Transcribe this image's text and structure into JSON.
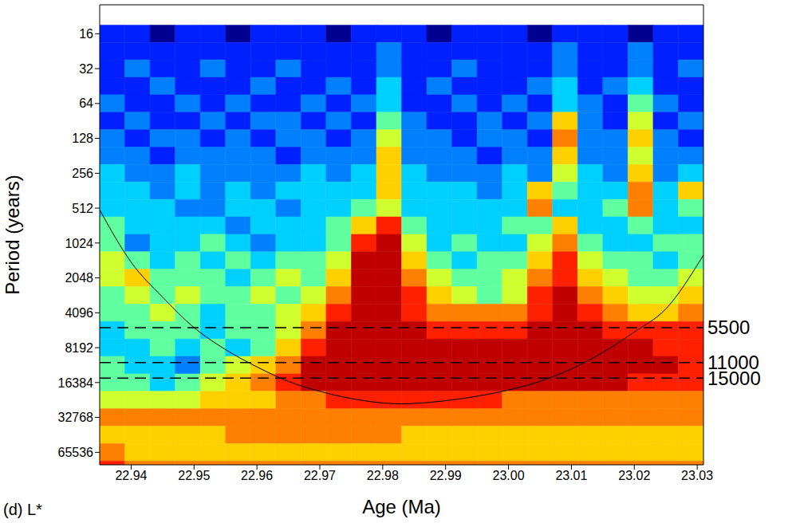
{
  "chart_data": {
    "type": "heatmap",
    "title": "(d) L*",
    "x_label": "Age (Ma)",
    "y_label": "Period (years)",
    "log": "y",
    "xlim": [
      22.935,
      23.031
    ],
    "xticks": [
      22.94,
      22.95,
      22.96,
      22.97,
      22.98,
      22.99,
      23.0,
      23.01,
      23.02,
      23.03
    ],
    "ylim": [
      9,
      84000
    ],
    "yticks": [
      16,
      32,
      64,
      128,
      256,
      512,
      1024,
      2048,
      4096,
      8192,
      16384,
      32768,
      65536
    ],
    "x": [
      22.937,
      22.941,
      22.945,
      22.949,
      22.953,
      22.957,
      22.961,
      22.965,
      22.969,
      22.973,
      22.977,
      22.981,
      22.985,
      22.989,
      22.993,
      22.997,
      23.001,
      23.005,
      23.009,
      23.013,
      23.017,
      23.021,
      23.025,
      23.029
    ],
    "y": [
      16,
      22.6,
      32,
      45.3,
      64,
      90.5,
      128,
      181,
      256,
      362,
      512,
      724,
      1024,
      1448,
      2048,
      2896,
      4096,
      5793,
      8192,
      11585,
      16384,
      23170,
      32768,
      46341,
      65536,
      92682
    ],
    "power": [
      [
        1,
        1,
        0,
        1,
        1,
        0,
        1,
        1,
        1,
        0,
        1,
        1,
        1,
        0,
        1,
        1,
        1,
        0,
        1,
        1,
        1,
        0,
        1,
        1
      ],
      [
        1,
        1,
        1,
        1,
        1,
        1,
        1,
        1,
        1,
        1,
        1,
        2,
        1,
        1,
        1,
        1,
        1,
        1,
        2,
        1,
        1,
        2,
        1,
        1
      ],
      [
        1,
        2,
        1,
        1,
        2,
        1,
        1,
        2,
        1,
        1,
        1,
        2,
        1,
        1,
        2,
        1,
        1,
        1,
        2,
        1,
        1,
        2,
        1,
        2
      ],
      [
        1,
        1,
        2,
        1,
        1,
        1,
        2,
        1,
        1,
        2,
        1,
        3,
        1,
        2,
        1,
        1,
        1,
        2,
        3,
        1,
        2,
        3,
        1,
        1
      ],
      [
        2,
        1,
        1,
        2,
        1,
        2,
        1,
        1,
        2,
        1,
        2,
        3,
        1,
        1,
        2,
        1,
        2,
        1,
        3,
        2,
        1,
        4,
        2,
        1
      ],
      [
        1,
        2,
        1,
        1,
        2,
        1,
        2,
        2,
        1,
        2,
        1,
        4,
        2,
        1,
        1,
        2,
        1,
        2,
        6,
        2,
        1,
        5,
        1,
        2
      ],
      [
        2,
        1,
        2,
        2,
        1,
        2,
        1,
        2,
        2,
        1,
        2,
        5,
        2,
        2,
        1,
        2,
        2,
        1,
        7,
        2,
        2,
        6,
        2,
        1
      ],
      [
        2,
        2,
        1,
        2,
        2,
        2,
        2,
        1,
        2,
        2,
        2,
        6,
        2,
        2,
        2,
        1,
        2,
        2,
        6,
        2,
        2,
        5,
        2,
        2
      ],
      [
        3,
        2,
        2,
        3,
        2,
        2,
        2,
        2,
        3,
        2,
        3,
        6,
        3,
        2,
        2,
        2,
        3,
        2,
        5,
        3,
        2,
        6,
        2,
        3
      ],
      [
        3,
        3,
        2,
        3,
        2,
        3,
        2,
        3,
        3,
        3,
        3,
        6,
        3,
        3,
        3,
        2,
        3,
        6,
        4,
        3,
        3,
        7,
        3,
        6
      ],
      [
        3,
        3,
        3,
        2,
        2,
        3,
        3,
        2,
        3,
        3,
        4,
        5,
        3,
        3,
        3,
        3,
        3,
        7,
        3,
        3,
        4,
        7,
        3,
        4
      ],
      [
        4,
        3,
        3,
        3,
        3,
        2,
        3,
        3,
        3,
        4,
        6,
        8,
        4,
        3,
        3,
        3,
        4,
        4,
        6,
        3,
        3,
        4,
        3,
        3
      ],
      [
        4,
        2,
        3,
        3,
        4,
        3,
        2,
        3,
        3,
        4,
        8,
        9,
        5,
        3,
        4,
        3,
        3,
        5,
        7,
        4,
        3,
        3,
        4,
        4
      ],
      [
        5,
        4,
        3,
        4,
        3,
        4,
        3,
        4,
        4,
        5,
        9,
        9,
        6,
        4,
        3,
        4,
        4,
        6,
        8,
        5,
        4,
        4,
        3,
        4
      ],
      [
        5,
        6,
        4,
        4,
        4,
        3,
        4,
        5,
        4,
        6,
        9,
        9,
        7,
        5,
        4,
        4,
        5,
        7,
        8,
        6,
        5,
        4,
        4,
        5
      ],
      [
        4,
        5,
        4,
        5,
        4,
        4,
        5,
        4,
        5,
        7,
        9,
        9,
        8,
        6,
        5,
        4,
        5,
        8,
        9,
        7,
        6,
        5,
        5,
        6
      ],
      [
        4,
        4,
        5,
        4,
        3,
        4,
        4,
        5,
        6,
        8,
        9,
        9,
        8,
        7,
        7,
        7,
        7,
        8,
        9,
        8,
        7,
        6,
        6,
        7
      ],
      [
        3,
        4,
        4,
        4,
        3,
        4,
        4,
        5,
        7,
        9,
        9,
        9,
        9,
        8,
        8,
        8,
        8,
        9,
        9,
        9,
        8,
        8,
        8,
        8
      ],
      [
        3,
        3,
        4,
        3,
        4,
        3,
        4,
        6,
        8,
        9,
        9,
        9,
        9,
        9,
        9,
        9,
        9,
        9,
        9,
        9,
        9,
        9,
        8,
        8
      ],
      [
        4,
        3,
        3,
        2,
        4,
        5,
        6,
        7,
        9,
        9,
        9,
        9,
        9,
        9,
        9,
        9,
        9,
        9,
        9,
        9,
        9,
        9,
        9,
        8
      ],
      [
        4,
        4,
        3,
        4,
        5,
        6,
        7,
        8,
        9,
        9,
        9,
        9,
        9,
        9,
        9,
        9,
        9,
        9,
        9,
        9,
        9,
        8,
        8,
        8
      ],
      [
        5,
        5,
        5,
        5,
        6,
        6,
        6,
        7,
        7,
        8,
        8,
        8,
        8,
        8,
        8,
        8,
        7,
        7,
        7,
        7,
        7,
        7,
        7,
        7
      ],
      [
        7,
        7,
        7,
        7,
        7,
        7,
        7,
        7,
        7,
        7,
        7,
        7,
        7,
        7,
        7,
        7,
        7,
        7,
        7,
        7,
        7,
        7,
        7,
        7
      ],
      [
        6,
        6,
        6,
        6,
        6,
        7,
        7,
        7,
        7,
        7,
        7,
        7,
        6,
        6,
        6,
        6,
        6,
        6,
        6,
        6,
        6,
        6,
        6,
        6
      ],
      [
        7,
        6,
        6,
        6,
        6,
        6,
        6,
        6,
        6,
        6,
        6,
        6,
        6,
        6,
        6,
        6,
        6,
        6,
        6,
        6,
        6,
        6,
        6,
        6
      ],
      [
        8,
        7,
        7,
        7,
        7,
        7,
        7,
        7,
        7,
        7,
        7,
        7,
        7,
        7,
        7,
        7,
        7,
        7,
        7,
        7,
        7,
        7,
        7,
        7
      ]
    ],
    "power_range": [
      0,
      9
    ],
    "cone_of_influence": {
      "x": [
        22.935,
        22.94,
        22.945,
        22.95,
        22.955,
        22.96,
        22.965,
        22.97,
        22.975,
        22.983,
        22.99,
        22.995,
        23.0,
        23.005,
        23.01,
        23.015,
        23.02,
        23.025,
        23.031
      ],
      "y": [
        530,
        1500,
        3000,
        5500,
        8500,
        12000,
        16000,
        19500,
        22500,
        25000,
        23500,
        21500,
        19000,
        16000,
        12500,
        9000,
        6000,
        3800,
        1300
      ]
    },
    "reference_lines": [
      5500,
      11000,
      15000
    ]
  }
}
